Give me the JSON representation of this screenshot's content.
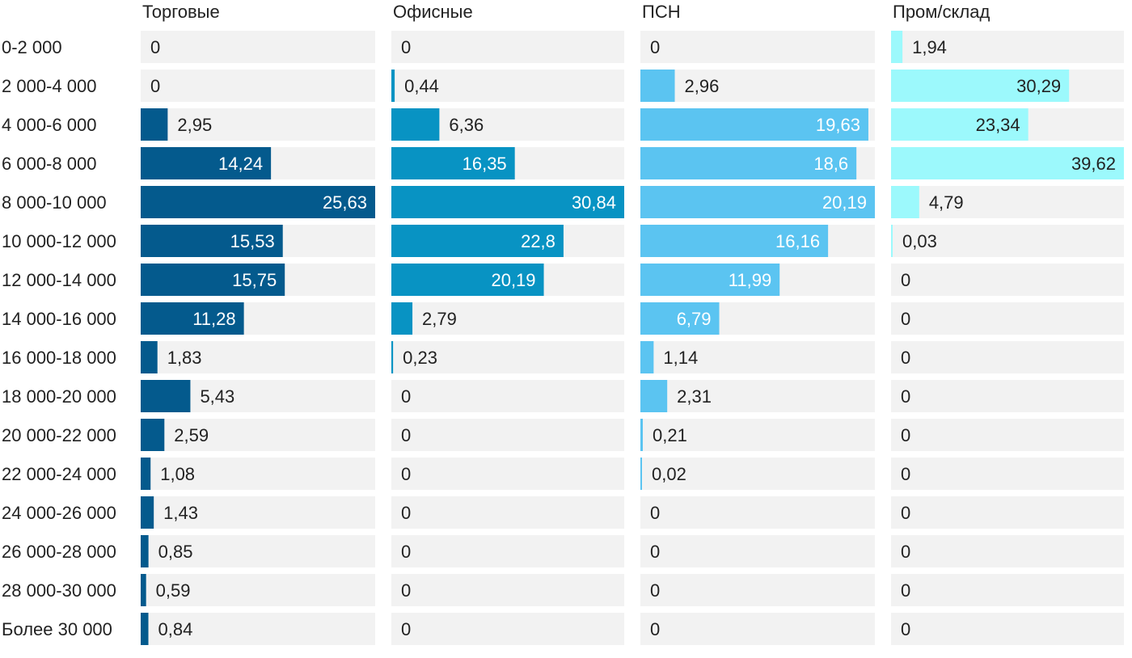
{
  "chart_data": {
    "type": "bar",
    "orientation": "horizontal",
    "layout": "small-multiples",
    "categories": [
      "0-2 000",
      "2 000-4 000",
      "4 000-6 000",
      "6 000-8 000",
      "8 000-10 000",
      "10 000-12 000",
      "12 000-14 000",
      "14 000-16 000",
      "16 000-18 000",
      "18 000-20 000",
      "20 000-22 000",
      "22 000-24 000",
      "24 000-26 000",
      "26 000-28 000",
      "28 000-30 000",
      "Более 30 000"
    ],
    "series": [
      {
        "name": "Торговые",
        "color": "#045a8d",
        "labels": [
          "0",
          "0",
          "2,95",
          "14,24",
          "25,63",
          "15,53",
          "15,75",
          "11,28",
          "1,83",
          "5,43",
          "2,59",
          "1,08",
          "1,43",
          "0,85",
          "0,59",
          "0,84"
        ],
        "values": [
          0,
          0,
          2.95,
          14.24,
          25.63,
          15.53,
          15.75,
          11.28,
          1.83,
          5.43,
          2.59,
          1.08,
          1.43,
          0.85,
          0.59,
          0.84
        ]
      },
      {
        "name": "Офисные",
        "color": "#0893c3",
        "labels": [
          "0",
          "0,44",
          "6,36",
          "16,35",
          "30,84",
          "22,8",
          "20,19",
          "2,79",
          "0,23",
          "0",
          "0",
          "0",
          "0",
          "0",
          "0",
          "0"
        ],
        "values": [
          0,
          0.44,
          6.36,
          16.35,
          30.84,
          22.8,
          20.19,
          2.79,
          0.23,
          0,
          0,
          0,
          0,
          0,
          0,
          0
        ]
      },
      {
        "name": "ПСН",
        "color": "#5bc4f1",
        "labels": [
          "0",
          "2,96",
          "19,63",
          "18,6",
          "20,19",
          "16,16",
          "11,99",
          "6,79",
          "1,14",
          "2,31",
          "0,21",
          "0,02",
          "0",
          "0",
          "0",
          "0"
        ],
        "values": [
          0,
          2.96,
          19.63,
          18.6,
          20.19,
          16.16,
          11.99,
          6.79,
          1.14,
          2.31,
          0.21,
          0.02,
          0,
          0,
          0,
          0
        ]
      },
      {
        "name": "Пром/склад",
        "color": "#9cf9fc",
        "labels": [
          "1,94",
          "30,29",
          "23,34",
          "39,62",
          "4,79",
          "0,03",
          "0",
          "0",
          "0",
          "0",
          "0",
          "0",
          "0",
          "0",
          "0",
          "0"
        ],
        "values": [
          1.94,
          30.29,
          23.34,
          39.62,
          4.79,
          0.03,
          0,
          0,
          0,
          0,
          0,
          0,
          0,
          0,
          0,
          0
        ]
      }
    ],
    "background_color": "#f2f2f2",
    "label_color_dark": "#222222",
    "label_color_light": "#ffffff",
    "title": "",
    "xlabel": "",
    "ylabel": "",
    "grid": false,
    "legend": "none"
  }
}
